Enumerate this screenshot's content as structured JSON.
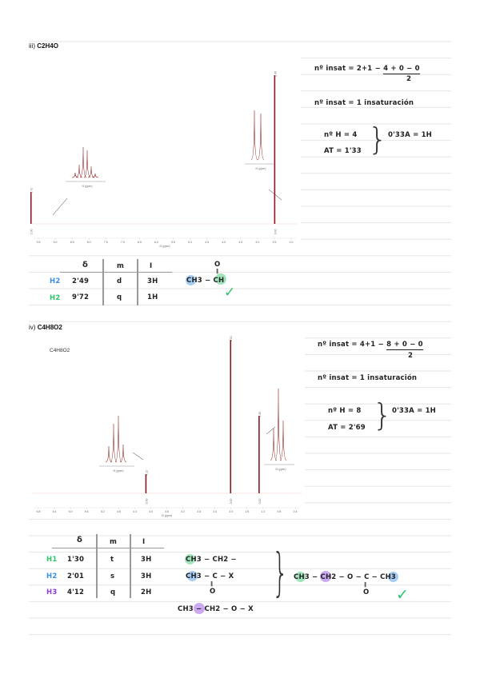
{
  "colors": {
    "rule": "#e6e6e6",
    "spectrum": "#8b1a1a",
    "h_blue": "#3a8ee6",
    "h_green": "#2ec46a",
    "h_purple": "#8d3de0",
    "check": "#2ec46a"
  },
  "section1": {
    "prefix": "iii)",
    "formula": "C2H4O",
    "spectrum": {
      "xlabel": "f1 (ppm)",
      "ticks": [
        "9.5",
        "9.0",
        "8.5",
        "8.0",
        "7.5",
        "7.0",
        "6.5",
        "6.0",
        "5.5",
        "5.0",
        "4.5",
        "4.0",
        "3.5",
        "3.0",
        "2.5",
        "2.0"
      ],
      "peaks": [
        {
          "ppm": 9.72,
          "mult": "q",
          "integral": "1.00"
        },
        {
          "ppm": 2.49,
          "mult": "d",
          "integral": "3.00"
        }
      ],
      "inset_left_ticks": [
        "9.75",
        "9.70"
      ],
      "inset_right_ticks": [
        "2.50"
      ],
      "inset_xlabel": "f1 (ppm)"
    },
    "calc": {
      "insat_lhs": "nº insat = 2+1 −",
      "insat_num": "4 + 0 − 0",
      "insat_den": "2",
      "insat_result": "nº insat = 1 insaturación",
      "nH": "nº H = 4",
      "AT": "AT = 1'33",
      "ratio": "0'33A = 1H"
    },
    "table": {
      "headers": [
        "δ",
        "m",
        "I"
      ],
      "rows": [
        {
          "label": "H2",
          "delta": "2'49",
          "m": "d",
          "I": "3H",
          "color": "blue"
        },
        {
          "label": "H2",
          "delta": "9'72",
          "m": "q",
          "I": "1H",
          "color": "green"
        }
      ]
    },
    "structure": {
      "top": "O",
      "bond": "‖",
      "left": "CH3",
      "dash": "−",
      "right": "CH"
    },
    "check": "✓"
  },
  "section2": {
    "prefix": "iv)",
    "formula": "C4H8O2",
    "inner_label": "C4H8O2",
    "spectrum": {
      "xlabel": "f1 (ppm)",
      "ticks": [
        "6.8",
        "6.4",
        "6.0",
        "5.6",
        "5.2",
        "4.8",
        "4.4",
        "4.0",
        "3.6",
        "3.2",
        "2.8",
        "2.4",
        "2.0",
        "1.6",
        "1.2",
        "0.8",
        "0.4"
      ],
      "peaks": [
        {
          "ppm": 4.12,
          "mult": "q",
          "integral": "2.00"
        },
        {
          "ppm": 2.01,
          "mult": "s",
          "integral": "3.00"
        },
        {
          "ppm": 1.3,
          "mult": "t",
          "integral": "3.00"
        }
      ],
      "singlet_label": "2.01",
      "inset_xlabel": "f1 (ppm)"
    },
    "calc": {
      "insat_lhs": "nº insat = 4+1 −",
      "insat_num": "8 + 0 − 0",
      "insat_den": "2",
      "insat_result": "nº insat = 1 insaturación",
      "nH": "nº H = 8",
      "AT": "AT = 2'69",
      "ratio": "0'33A = 1H"
    },
    "table": {
      "headers": [
        "δ",
        "m",
        "I"
      ],
      "rows": [
        {
          "label": "H1",
          "delta": "1'30",
          "m": "t",
          "I": "3H",
          "color": "green"
        },
        {
          "label": "H2",
          "delta": "2'01",
          "m": "s",
          "I": "3H",
          "color": "blue"
        },
        {
          "label": "H3",
          "delta": "4'12",
          "m": "q",
          "I": "2H",
          "color": "purple"
        }
      ]
    },
    "fragments": {
      "f1": "CH3 − CH2 −",
      "f2": "CH3 − C − X",
      "f2_bond": "‖",
      "f2_o": "O",
      "f3": "CH3 − CH2 − O − X"
    },
    "final": {
      "text": "CH3 − CH2 − O − C − CH3",
      "bond": "‖",
      "o": "O"
    },
    "check": "✓"
  }
}
